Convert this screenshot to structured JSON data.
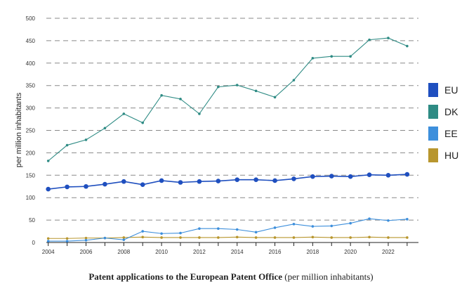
{
  "chart_data": {
    "type": "line",
    "title": "Patent applications to the European Patent Office",
    "title_suffix": "(per million inhabitants)",
    "xlabel": "",
    "ylabel": "per million inhabitants",
    "xlim": [
      2004,
      2023
    ],
    "ylim": [
      0,
      500
    ],
    "yticks": [
      0,
      50,
      100,
      150,
      200,
      250,
      300,
      350,
      400,
      450,
      500
    ],
    "xticks": [
      2004,
      2006,
      2008,
      2010,
      2012,
      2014,
      2016,
      2018,
      2020,
      2022
    ],
    "grid": "horizontal dashed",
    "legend_position": "right",
    "x": [
      2004,
      2005,
      2006,
      2007,
      2008,
      2009,
      2010,
      2011,
      2012,
      2013,
      2014,
      2015,
      2016,
      2017,
      2018,
      2019,
      2020,
      2021,
      2022,
      2023
    ],
    "series": [
      {
        "name": "EU",
        "color": "#1f4fbf",
        "values": [
          119,
          124,
          125,
          130,
          136,
          129,
          138,
          134,
          136,
          137,
          140,
          140,
          138,
          142,
          147,
          148,
          147,
          151,
          150,
          152
        ]
      },
      {
        "name": "DK",
        "color": "#2e8b84",
        "values": [
          182,
          217,
          229,
          255,
          287,
          267,
          328,
          320,
          287,
          347,
          351,
          338,
          324,
          362,
          411,
          415,
          415,
          452,
          456,
          438
        ]
      },
      {
        "name": "EE",
        "color": "#3d8fdc",
        "values": [
          3,
          3,
          5,
          10,
          6,
          25,
          20,
          21,
          31,
          31,
          29,
          23,
          33,
          41,
          36,
          37,
          43,
          53,
          49,
          52
        ]
      },
      {
        "name": "HU",
        "color": "#b8962e",
        "values": [
          9,
          9,
          10,
          10,
          11,
          12,
          11,
          11,
          11,
          11,
          12,
          11,
          11,
          11,
          12,
          11,
          11,
          12,
          11,
          11
        ]
      }
    ]
  }
}
